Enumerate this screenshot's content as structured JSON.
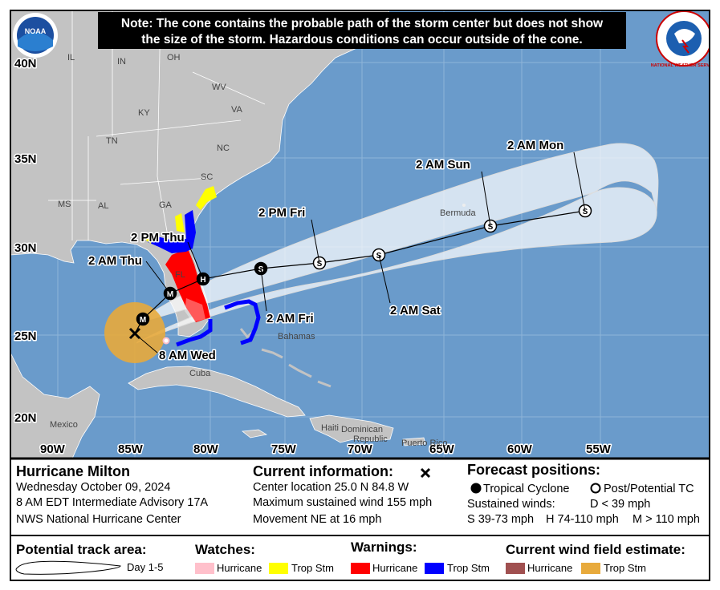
{
  "note": [
    "Note: The cone contains the probable path of the storm center but does not show",
    "the size of the storm. Hazardous conditions can occur outside of the cone."
  ],
  "logos": {
    "noaa": "NOAA",
    "nws": "NATIONAL WEATHER SERVICE"
  },
  "map": {
    "latitude_labels": [
      "40N",
      "35N",
      "30N",
      "25N",
      "20N"
    ],
    "longitude_labels": [
      "90W",
      "85W",
      "80W",
      "75W",
      "70W",
      "65W",
      "60W",
      "55W"
    ],
    "place_labels": [
      "IL",
      "IN",
      "OH",
      "KY",
      "WV",
      "VA",
      "TN",
      "NC",
      "SC",
      "GA",
      "AL",
      "MS",
      "FL",
      "Mexico",
      "Cuba",
      "Bahamas",
      "Bermuda",
      "Haiti",
      "Dominican",
      "Republic",
      "Puerto Rico"
    ],
    "forecast_points": [
      {
        "label": "8 AM Wed"
      },
      {
        "marker": "M",
        "filled": true
      },
      {
        "marker": "M",
        "filled": true,
        "label": "2 AM Thu"
      },
      {
        "marker": "H",
        "filled": true,
        "label": "2 PM Thu"
      },
      {
        "marker": "S",
        "filled": true,
        "label": "2 AM Fri"
      },
      {
        "marker": "S",
        "filled": false,
        "label": "2 PM Fri"
      },
      {
        "marker": "S",
        "filled": false,
        "label": "2 AM Sat"
      },
      {
        "marker": "S",
        "filled": false,
        "label": "2 AM Sun"
      },
      {
        "marker": "S",
        "filled": false,
        "label": "2 AM Mon"
      }
    ]
  },
  "storm_info": {
    "name": "Hurricane Milton",
    "date": "Wednesday October 09, 2024",
    "advisory": "8 AM EDT Intermediate Advisory 17A",
    "office": "NWS National Hurricane Center"
  },
  "current_information": {
    "heading": "Current information:",
    "lines": [
      "Center location 25.0 N 84.8 W",
      "Maximum sustained wind 155 mph",
      "Movement NE at 16 mph"
    ]
  },
  "forecast_positions": {
    "heading": "Forecast positions:",
    "tropical": "Tropical Cyclone",
    "post": "Post/Potential TC",
    "winds": "Sustained winds:",
    "d": "D < 39 mph",
    "s": "S 39-73 mph",
    "h": "H 74-110 mph",
    "m": "M > 110 mph"
  },
  "legend": {
    "track": {
      "heading": "Potential track area:",
      "item": "Day 1-5"
    },
    "watches": {
      "heading": "Watches:",
      "items": [
        {
          "name": "Hurricane",
          "color": "#ffc0cb"
        },
        {
          "name": "Trop Stm",
          "color": "#ffff00"
        }
      ]
    },
    "warnings": {
      "heading": "Warnings:",
      "items": [
        {
          "name": "Hurricane",
          "color": "#ff0000"
        },
        {
          "name": "Trop Stm",
          "color": "#0000ff"
        }
      ]
    },
    "wind_field": {
      "heading": "Current wind field estimate:",
      "items": [
        {
          "name": "Hurricane",
          "color": "#a05050"
        },
        {
          "name": "Trop Stm",
          "color": "#e8aa3c"
        }
      ]
    }
  }
}
